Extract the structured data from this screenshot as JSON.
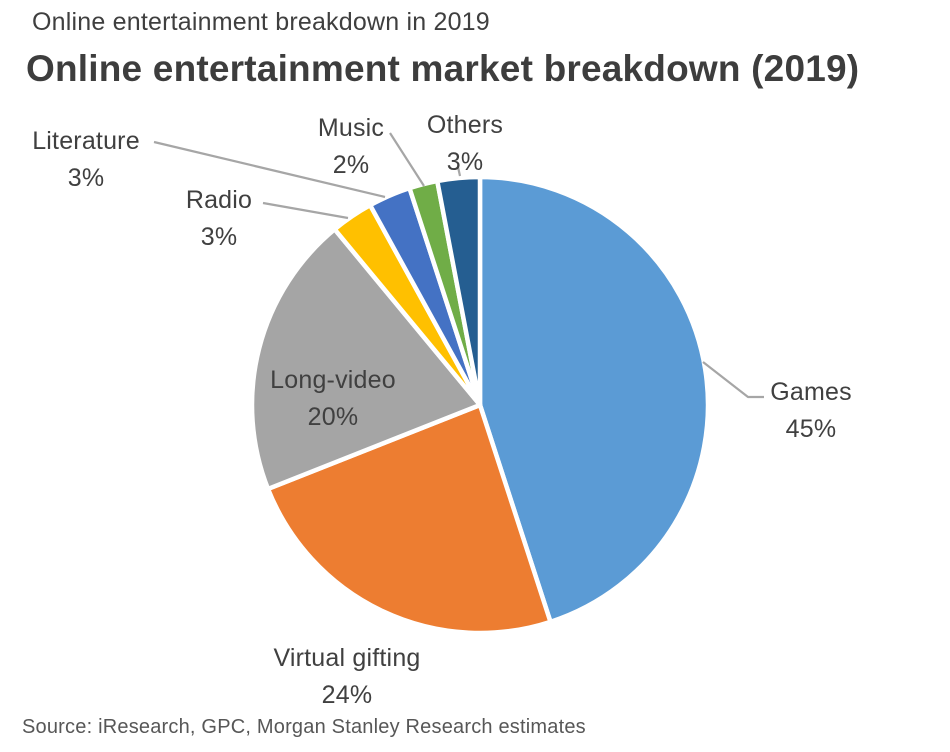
{
  "header": {
    "kicker": "Online entertainment breakdown in 2019",
    "title": "Online entertainment market breakdown (2019)"
  },
  "chart_data": {
    "type": "pie",
    "title": "Online entertainment market breakdown (2019)",
    "start_angle_deg": 0,
    "direction": "clockwise",
    "slices": [
      {
        "label": "Games",
        "value": 45,
        "pct": "45%",
        "color": "#5B9BD5"
      },
      {
        "label": "Virtual gifting",
        "value": 24,
        "pct": "24%",
        "color": "#ED7D31"
      },
      {
        "label": "Long-video",
        "value": 20,
        "pct": "20%",
        "color": "#A5A5A5"
      },
      {
        "label": "Radio",
        "value": 3,
        "pct": "3%",
        "color": "#FFC000"
      },
      {
        "label": "Literature",
        "value": 3,
        "pct": "3%",
        "color": "#4472C4"
      },
      {
        "label": "Music",
        "value": 2,
        "pct": "2%",
        "color": "#70AD47"
      },
      {
        "label": "Others",
        "value": 3,
        "pct": "3%",
        "color": "#255E91"
      }
    ],
    "leader_line_color": "#A6A6A6",
    "slice_border_color": "#FFFFFF",
    "legend": "none",
    "labels": "callouts-outside-and-inside"
  },
  "footer": {
    "source": "Source: iResearch, GPC, Morgan Stanley Research estimates"
  }
}
